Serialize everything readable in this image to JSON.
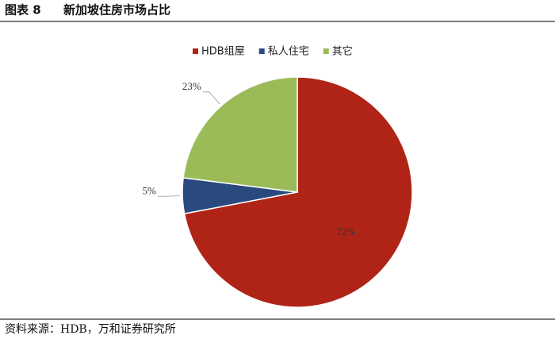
{
  "header": {
    "label": "图表 8",
    "title": "新加坡住房市场占比"
  },
  "chart_data": {
    "type": "pie",
    "categories": [
      "HDB组屋",
      "私人住宅",
      "其它"
    ],
    "values": [
      72,
      5,
      23
    ],
    "value_labels": [
      "72%",
      "5%",
      "23%"
    ],
    "colors": [
      "#b02418",
      "#2a4a7f",
      "#9bbb59"
    ],
    "start_angle": "top",
    "direction": "clockwise",
    "legend": "top"
  },
  "footer": {
    "source": "资料来源：HDB，万和证券研究所"
  }
}
